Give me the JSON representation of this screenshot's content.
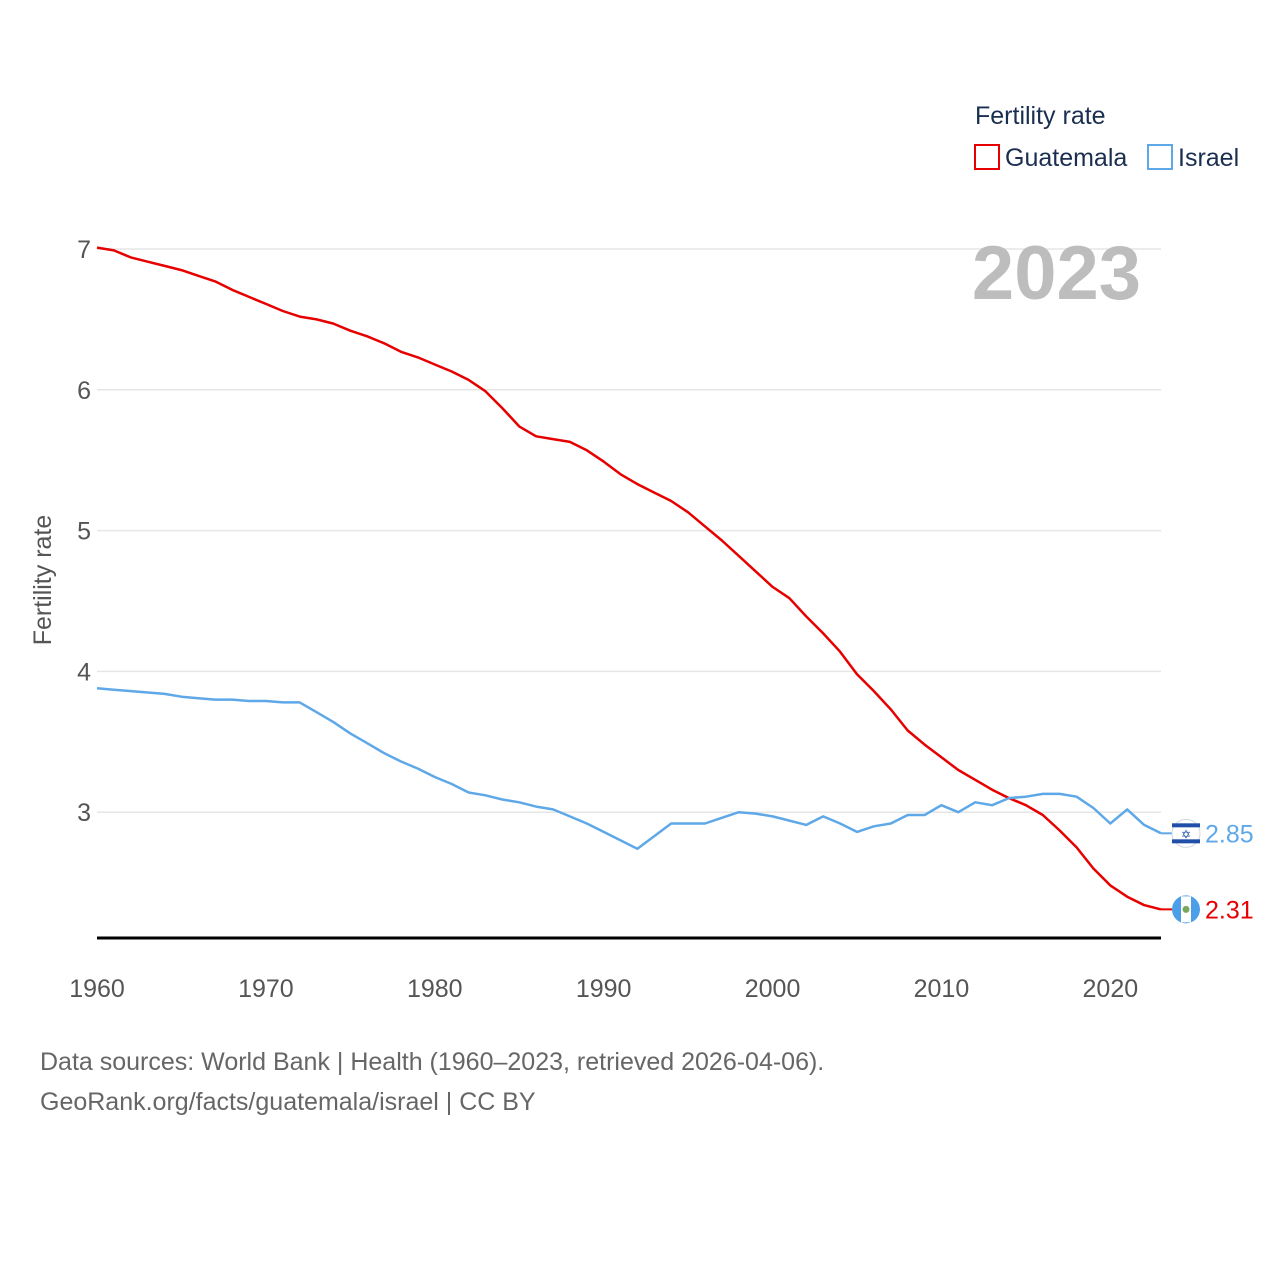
{
  "chart_data": {
    "type": "line",
    "legend_title": "Fertility rate",
    "ylabel": "Fertility rate",
    "year_label": "2023",
    "ylim": [
      2.1,
      7.0
    ],
    "xlim": [
      1960,
      2023
    ],
    "y_ticks": [
      3,
      4,
      5,
      6,
      7
    ],
    "x_ticks": [
      1960,
      1970,
      1980,
      1990,
      2000,
      2010,
      2020
    ],
    "x": [
      1960,
      1961,
      1962,
      1963,
      1964,
      1965,
      1966,
      1967,
      1968,
      1969,
      1970,
      1971,
      1972,
      1973,
      1974,
      1975,
      1976,
      1977,
      1978,
      1979,
      1980,
      1981,
      1982,
      1983,
      1984,
      1985,
      1986,
      1987,
      1988,
      1989,
      1990,
      1991,
      1992,
      1993,
      1994,
      1995,
      1996,
      1997,
      1998,
      1999,
      2000,
      2001,
      2002,
      2003,
      2004,
      2005,
      2006,
      2007,
      2008,
      2009,
      2010,
      2011,
      2012,
      2013,
      2014,
      2015,
      2016,
      2017,
      2018,
      2019,
      2020,
      2021,
      2022,
      2023
    ],
    "series": [
      {
        "name": "Guatemala",
        "color": "#e60000",
        "end_label": "2.31",
        "flag": "guatemala-flag-icon",
        "values": [
          7.01,
          6.99,
          6.94,
          6.91,
          6.88,
          6.85,
          6.81,
          6.77,
          6.71,
          6.66,
          6.61,
          6.56,
          6.52,
          6.5,
          6.47,
          6.42,
          6.38,
          6.33,
          6.27,
          6.23,
          6.18,
          6.13,
          6.07,
          5.99,
          5.87,
          5.74,
          5.67,
          5.65,
          5.63,
          5.57,
          5.49,
          5.4,
          5.33,
          5.27,
          5.21,
          5.13,
          5.03,
          4.93,
          4.82,
          4.71,
          4.6,
          4.52,
          4.39,
          4.27,
          4.14,
          3.98,
          3.86,
          3.73,
          3.58,
          3.48,
          3.39,
          3.3,
          3.23,
          3.16,
          3.1,
          3.05,
          2.98,
          2.87,
          2.75,
          2.6,
          2.48,
          2.4,
          2.34,
          2.31
        ]
      },
      {
        "name": "Israel",
        "color": "#5fa8e8",
        "end_label": "2.85",
        "flag": "israel-flag-icon",
        "values": [
          3.88,
          3.87,
          3.86,
          3.85,
          3.84,
          3.82,
          3.81,
          3.8,
          3.8,
          3.79,
          3.79,
          3.78,
          3.78,
          3.71,
          3.64,
          3.56,
          3.49,
          3.42,
          3.36,
          3.31,
          3.25,
          3.2,
          3.14,
          3.12,
          3.09,
          3.07,
          3.04,
          3.02,
          2.97,
          2.92,
          2.86,
          2.8,
          2.74,
          2.83,
          2.92,
          2.92,
          2.92,
          2.96,
          3.0,
          2.99,
          2.97,
          2.94,
          2.91,
          2.97,
          2.92,
          2.86,
          2.9,
          2.92,
          2.98,
          2.98,
          3.05,
          3.0,
          3.07,
          3.05,
          3.1,
          3.11,
          3.13,
          3.13,
          3.11,
          3.03,
          2.92,
          3.02,
          2.91,
          2.85
        ]
      }
    ]
  },
  "footer": {
    "sources": "Data sources: World Bank | Health (1960–2023, retrieved 2026-04-06).",
    "credit": "GeoRank.org/facts/guatemala/israel | CC BY"
  }
}
